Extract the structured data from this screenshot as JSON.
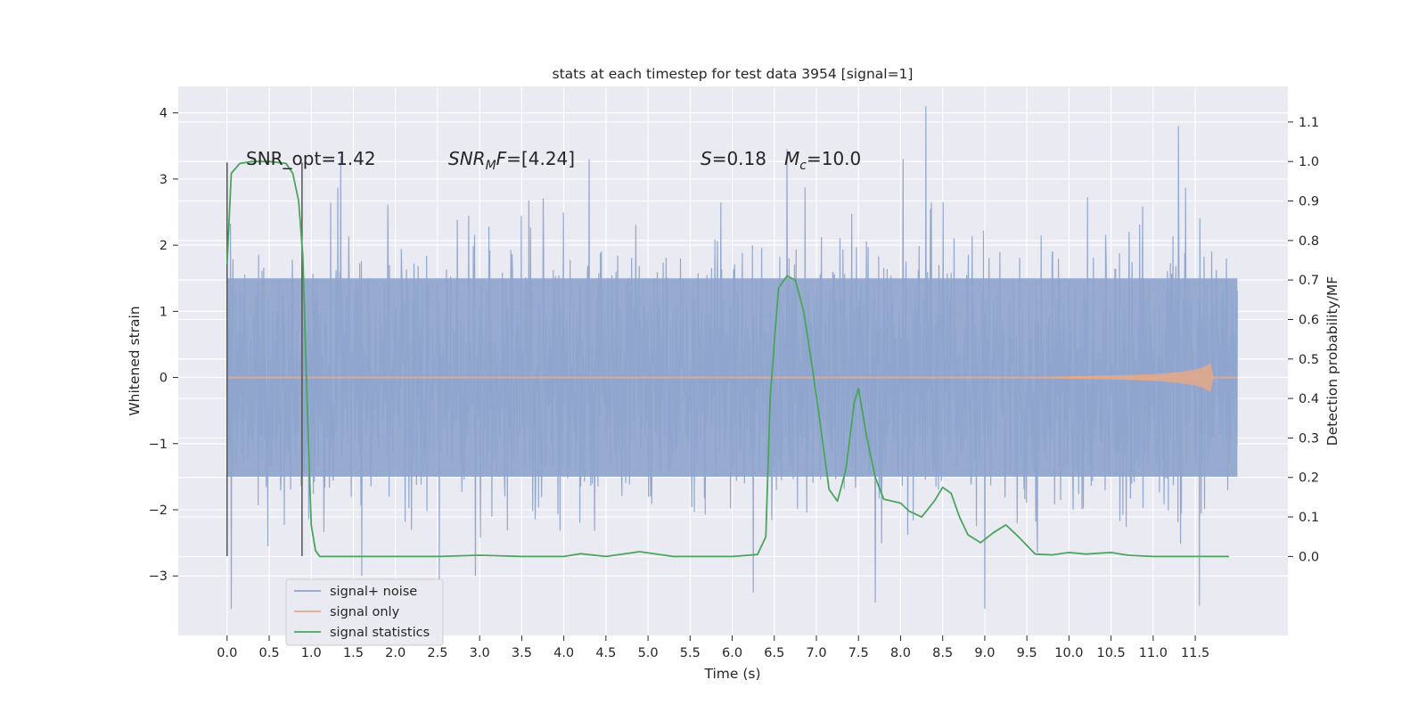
{
  "chart_data": {
    "type": "line",
    "title": "stats at each timestep for test data 3954 [signal=1]",
    "xlabel": "Time (s)",
    "ylabel_left": "Whitened strain",
    "ylabel_right": "Detection probability/MF",
    "xlim": [
      -0.58,
      12.6
    ],
    "ylim_left": [
      -3.9,
      4.4
    ],
    "ylim_right": [
      -0.2,
      1.19
    ],
    "x_ticks": [
      0.0,
      0.5,
      1.0,
      1.5,
      2.0,
      2.5,
      3.0,
      3.5,
      4.0,
      4.5,
      5.0,
      5.5,
      6.0,
      6.5,
      7.0,
      7.5,
      8.0,
      8.5,
      9.0,
      9.5,
      10.0,
      10.5,
      11.0,
      11.5
    ],
    "x_tick_labels": [
      "0.0",
      "0.5",
      "1.0",
      "1.5",
      "2.0",
      "2.5",
      "3.0",
      "3.5",
      "4.0",
      "4.5",
      "5.0",
      "5.5",
      "6.0",
      "6.5",
      "7.0",
      "7.5",
      "8.0",
      "8.5",
      "9.0",
      "9.5",
      "10.0",
      "10.5",
      "11.0",
      "11.5"
    ],
    "y_left_ticks": [
      -3,
      -2,
      -1,
      0,
      1,
      2,
      3,
      4
    ],
    "y_left_tick_labels": [
      "−3",
      "−2",
      "−1",
      "0",
      "1",
      "2",
      "3",
      "4"
    ],
    "y_right_ticks": [
      0.0,
      0.1,
      0.2,
      0.3,
      0.4,
      0.5,
      0.6,
      0.7,
      0.8,
      0.9,
      1.0,
      1.1
    ],
    "y_right_tick_labels": [
      "0.0",
      "0.1",
      "0.2",
      "0.3",
      "0.4",
      "0.5",
      "0.6",
      "0.7",
      "0.8",
      "0.9",
      "1.0",
      "1.1"
    ],
    "grid": true,
    "legend_placement": "lower-left",
    "colors": {
      "background": "#eaeaf2",
      "grid": "#ffffff",
      "noise": "#8ea4cc",
      "signal": "#e0a88c",
      "statistics": "#4aa55c",
      "marker": "#555555"
    },
    "annotations": {
      "snr_opt": "SNR_opt=1.42",
      "snr_mf": "SNR",
      "snr_mf_sub": "M",
      "snr_mf_mid": "F",
      "snr_mf_val": "=[4.24]",
      "s_symbol": "S",
      "s_val": "=0.18",
      "mc_symbol": "M",
      "mc_sub": "c",
      "mc_val": "=10.0"
    },
    "series": [
      {
        "name": "signal+ noise",
        "axis": "left",
        "x_range": [
          0.0,
          12.0
        ],
        "envelope_typical": [
          -1.5,
          1.5
        ],
        "notable_peaks": [
          [
            8.3,
            4.1
          ],
          [
            11.3,
            3.8
          ],
          [
            6.65,
            3.45
          ],
          [
            1.35,
            3.35
          ],
          [
            4.3,
            3.3
          ]
        ],
        "notable_troughs": [
          [
            0.05,
            -3.5
          ],
          [
            7.7,
            -3.4
          ],
          [
            9.0,
            -3.5
          ],
          [
            11.55,
            -3.45
          ],
          [
            6.25,
            -3.25
          ],
          [
            2.95,
            -3.0
          ],
          [
            1.6,
            -3.0
          ]
        ]
      },
      {
        "name": "signal only",
        "axis": "left",
        "x": [
          0.0,
          9.0,
          10.0,
          10.5,
          11.0,
          11.3,
          11.5,
          11.6,
          11.68,
          11.72,
          12.0
        ],
        "amplitude": [
          0.0,
          0.0,
          0.02,
          0.03,
          0.05,
          0.08,
          0.12,
          0.16,
          0.22,
          0.0,
          0.0
        ]
      },
      {
        "name": "signal statistics",
        "axis": "right",
        "x": [
          0.0,
          0.05,
          0.15,
          0.3,
          0.5,
          0.7,
          0.78,
          0.85,
          0.9,
          0.95,
          1.0,
          1.05,
          1.1,
          1.5,
          2.0,
          2.5,
          3.0,
          3.5,
          4.0,
          4.2,
          4.5,
          4.9,
          5.3,
          6.0,
          6.3,
          6.4,
          6.45,
          6.55,
          6.65,
          6.75,
          6.85,
          6.95,
          7.05,
          7.15,
          7.25,
          7.35,
          7.45,
          7.5,
          7.6,
          7.7,
          7.8,
          7.9,
          8.0,
          8.1,
          8.25,
          8.4,
          8.5,
          8.6,
          8.7,
          8.8,
          8.95,
          9.1,
          9.25,
          9.4,
          9.6,
          9.8,
          10.0,
          10.2,
          10.5,
          10.7,
          11.0,
          11.5,
          11.9
        ],
        "values": [
          0.74,
          0.97,
          0.995,
          1.0,
          1.0,
          0.995,
          0.97,
          0.9,
          0.76,
          0.4,
          0.08,
          0.015,
          0.0,
          0.0,
          0.0,
          0.0,
          0.003,
          0.0,
          0.0,
          0.007,
          0.0,
          0.012,
          0.0,
          0.0,
          0.005,
          0.05,
          0.4,
          0.68,
          0.71,
          0.7,
          0.62,
          0.48,
          0.33,
          0.17,
          0.14,
          0.22,
          0.39,
          0.425,
          0.3,
          0.2,
          0.145,
          0.14,
          0.135,
          0.115,
          0.1,
          0.14,
          0.175,
          0.16,
          0.1,
          0.055,
          0.035,
          0.06,
          0.08,
          0.05,
          0.006,
          0.004,
          0.01,
          0.006,
          0.01,
          0.003,
          0.0,
          0.0,
          0.0
        ]
      }
    ],
    "marker_lines": {
      "x": [
        0.0,
        0.89
      ],
      "y_range_left": [
        -2.7,
        3.25
      ]
    }
  }
}
